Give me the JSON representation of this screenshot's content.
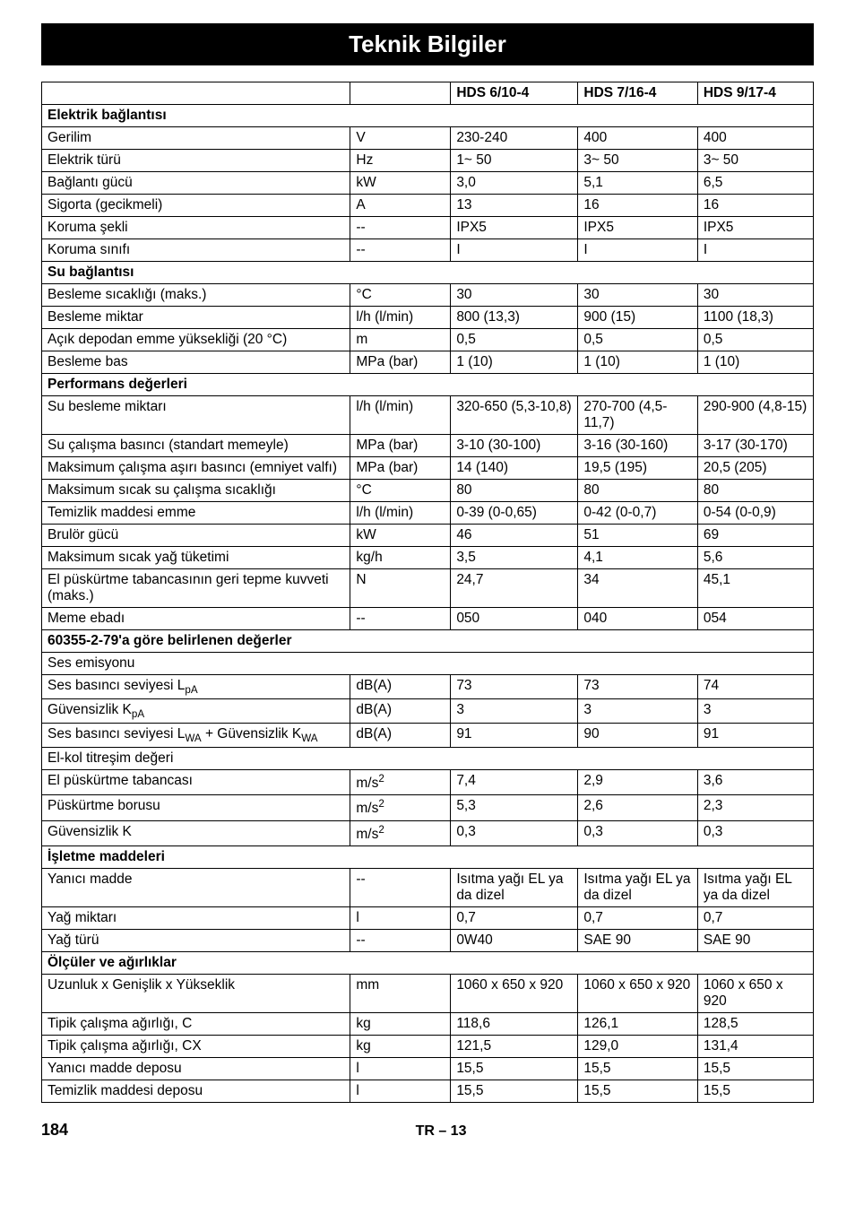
{
  "title": "Teknik Bilgiler",
  "columns": {
    "label": "",
    "unit": "",
    "v1": "HDS 6/10-4",
    "v2": "HDS 7/16-4",
    "v3": "HDS 9/17-4"
  },
  "rows": [
    {
      "type": "section",
      "label": "Elektrik bağlantısı"
    },
    {
      "type": "data",
      "label": "Gerilim",
      "unit": "V",
      "v1": "230-240",
      "v2": "400",
      "v3": "400"
    },
    {
      "type": "data",
      "label": "Elektrik türü",
      "unit": "Hz",
      "v1": "1~ 50",
      "v2": "3~ 50",
      "v3": "3~ 50"
    },
    {
      "type": "data",
      "label": "Bağlantı gücü",
      "unit": "kW",
      "v1": "3,0",
      "v2": "5,1",
      "v3": "6,5"
    },
    {
      "type": "data",
      "label": "Sigorta (gecikmeli)",
      "unit": "A",
      "v1": "13",
      "v2": "16",
      "v3": "16"
    },
    {
      "type": "data",
      "label": "Koruma şekli",
      "unit": "--",
      "v1": "IPX5",
      "v2": "IPX5",
      "v3": "IPX5"
    },
    {
      "type": "data",
      "label": "Koruma sınıfı",
      "unit": "--",
      "v1": "I",
      "v2": "I",
      "v3": "I"
    },
    {
      "type": "section",
      "label": "Su bağlantısı"
    },
    {
      "type": "data",
      "label": "Besleme sıcaklığı (maks.)",
      "unit": "°C",
      "v1": "30",
      "v2": "30",
      "v3": "30"
    },
    {
      "type": "data",
      "label": "Besleme miktar",
      "unit": "l/h (l/min)",
      "v1": "800 (13,3)",
      "v2": "900 (15)",
      "v3": "1100 (18,3)"
    },
    {
      "type": "data",
      "label": "Açık depodan emme yüksekliği (20 °C)",
      "unit": "m",
      "v1": "0,5",
      "v2": "0,5",
      "v3": "0,5"
    },
    {
      "type": "data",
      "label": "Besleme bas",
      "unit": "MPa (bar)",
      "v1": "1 (10)",
      "v2": "1 (10)",
      "v3": "1 (10)"
    },
    {
      "type": "section",
      "label": "Performans değerleri"
    },
    {
      "type": "data",
      "label": "Su besleme miktarı",
      "unit": "l/h (l/min)",
      "v1": "320-650 (5,3-10,8)",
      "v2": "270-700 (4,5-11,7)",
      "v3": "290-900 (4,8-15)"
    },
    {
      "type": "data",
      "label": "Su çalışma basıncı (standart memeyle)",
      "unit": "MPa (bar)",
      "v1": "3-10 (30-100)",
      "v2": "3-16 (30-160)",
      "v3": "3-17 (30-170)"
    },
    {
      "type": "data",
      "label": "Maksimum çalışma aşırı basıncı (emniyet valfı)",
      "unit": "MPa (bar)",
      "v1": "14 (140)",
      "v2": "19,5 (195)",
      "v3": "20,5 (205)"
    },
    {
      "type": "data",
      "label": "Maksimum sıcak su çalışma sıcaklığı",
      "unit": "°C",
      "v1": "80",
      "v2": "80",
      "v3": "80"
    },
    {
      "type": "data",
      "label": "Temizlik maddesi emme",
      "unit": "l/h (l/min)",
      "v1": "0-39 (0-0,65)",
      "v2": "0-42 (0-0,7)",
      "v3": "0-54 (0-0,9)"
    },
    {
      "type": "data",
      "label": "Brulör gücü",
      "unit": "kW",
      "v1": "46",
      "v2": "51",
      "v3": "69"
    },
    {
      "type": "data",
      "label": "Maksimum sıcak yağ tüketimi",
      "unit": "kg/h",
      "v1": "3,5",
      "v2": "4,1",
      "v3": "5,6"
    },
    {
      "type": "data",
      "label": "El püskürtme tabancasının geri tepme kuvveti (maks.)",
      "unit": "N",
      "v1": "24,7",
      "v2": "34",
      "v3": "45,1"
    },
    {
      "type": "data",
      "label": "Meme ebadı",
      "unit": "--",
      "v1": "050",
      "v2": "040",
      "v3": "054"
    },
    {
      "type": "section",
      "label": "60355-2-79'a göre belirlenen değerler"
    },
    {
      "type": "section-sub",
      "label": "Ses emisyonu"
    },
    {
      "type": "data-html",
      "label_html": "Ses basıncı seviyesi L<span class=\"sub\">pA</span>",
      "unit": "dB(A)",
      "v1": "73",
      "v2": "73",
      "v3": "74"
    },
    {
      "type": "data-html",
      "label_html": "Güvensizlik K<span class=\"sub\">pA</span>",
      "unit": "dB(A)",
      "v1": "3",
      "v2": "3",
      "v3": "3"
    },
    {
      "type": "data-html",
      "label_html": "Ses basıncı seviyesi L<span class=\"sub\">WA</span> + Güvensizlik K<span class=\"sub\">WA</span>",
      "unit": "dB(A)",
      "v1": "91",
      "v2": "90",
      "v3": "91"
    },
    {
      "type": "section-sub",
      "label": "El-kol titreşim değeri"
    },
    {
      "type": "data-html",
      "label_html": "El püskürtme tabancası",
      "unit_html": "m/s<span class=\"sup\">2</span>",
      "v1": "7,4",
      "v2": "2,9",
      "v3": "3,6"
    },
    {
      "type": "data-html",
      "label_html": "Püskürtme borusu",
      "unit_html": "m/s<span class=\"sup\">2</span>",
      "v1": "5,3",
      "v2": "2,6",
      "v3": "2,3"
    },
    {
      "type": "data-html",
      "label_html": "Güvensizlik K",
      "unit_html": "m/s<span class=\"sup\">2</span>",
      "v1": "0,3",
      "v2": "0,3",
      "v3": "0,3"
    },
    {
      "type": "section",
      "label": "İşletme maddeleri"
    },
    {
      "type": "data",
      "label": "Yanıcı madde",
      "unit": "--",
      "v1": "Isıtma yağı EL ya da dizel",
      "v2": "Isıtma yağı EL ya da dizel",
      "v3": "Isıtma yağı EL ya da dizel"
    },
    {
      "type": "data",
      "label": "Yağ miktarı",
      "unit": "l",
      "v1": "0,7",
      "v2": "0,7",
      "v3": "0,7"
    },
    {
      "type": "data",
      "label": "Yağ türü",
      "unit": "--",
      "v1": "0W40",
      "v2": "SAE 90",
      "v3": "SAE 90"
    },
    {
      "type": "section",
      "label": "Ölçüler ve ağırlıklar"
    },
    {
      "type": "data",
      "label": "Uzunluk x Genişlik x Yükseklik",
      "unit": "mm",
      "v1": "1060 x 650 x 920",
      "v2": "1060 x 650 x 920",
      "v3": "1060 x 650 x 920"
    },
    {
      "type": "data",
      "label": "Tipik çalışma ağırlığı, C",
      "unit": "kg",
      "v1": "118,6",
      "v2": "126,1",
      "v3": "128,5"
    },
    {
      "type": "data",
      "label": "Tipik çalışma ağırlığı, CX",
      "unit": "kg",
      "v1": "121,5",
      "v2": "129,0",
      "v3": "131,4"
    },
    {
      "type": "data",
      "label": "Yanıcı madde deposu",
      "unit": "l",
      "v1": "15,5",
      "v2": "15,5",
      "v3": "15,5"
    },
    {
      "type": "data",
      "label": "Temizlik maddesi deposu",
      "unit": "l",
      "v1": "15,5",
      "v2": "15,5",
      "v3": "15,5"
    }
  ],
  "footer": {
    "page_no": "184",
    "center": "TR – 13"
  }
}
